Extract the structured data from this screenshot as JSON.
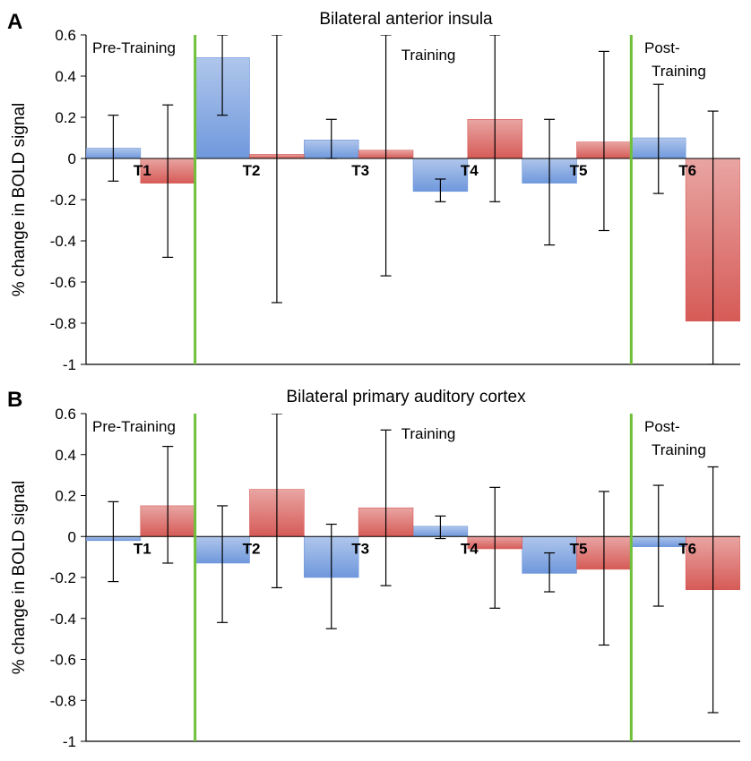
{
  "chart_data": [
    {
      "type": "bar",
      "panel_label": "A",
      "title": "Bilateral anterior insula",
      "xlabel": "",
      "ylabel": "% change in BOLD signal",
      "ylim": [
        -1,
        0.6
      ],
      "yticks": [
        0.6,
        0.4,
        0.2,
        0,
        -0.2,
        -0.4,
        -0.6,
        -0.8,
        -1
      ],
      "ytick_labels": [
        "0.6",
        "0.4",
        "0.2",
        "0",
        "-0.2",
        "-0.4",
        "-0.6",
        "-0.8",
        "-1"
      ],
      "grid": false,
      "categories": [
        "T1",
        "T2",
        "T3",
        "T4",
        "T5",
        "T6"
      ],
      "phases": [
        "Pre-Training",
        "Training",
        "Post-",
        "Training"
      ],
      "phase_boundaries_after": [
        "T1",
        "T5"
      ],
      "series": [
        {
          "name": "blue",
          "color": "#6f98dc",
          "values": [
            0.05,
            0.49,
            0.09,
            -0.16,
            -0.12,
            0.1
          ],
          "error_bars": [
            [
              -0.11,
              0.21
            ],
            [
              0.21,
              0.6
            ],
            [
              0.0,
              0.19
            ],
            [
              -0.21,
              -0.1
            ],
            [
              -0.42,
              0.19
            ],
            [
              -0.17,
              0.36
            ]
          ]
        },
        {
          "name": "red",
          "color": "#d65b57",
          "values": [
            -0.12,
            0.02,
            0.04,
            0.19,
            0.08,
            -0.79
          ],
          "error_bars": [
            [
              -0.48,
              0.26
            ],
            [
              -0.7,
              0.6
            ],
            [
              -0.57,
              0.6
            ],
            [
              -0.21,
              0.6
            ],
            [
              -0.35,
              0.52
            ],
            [
              -1.0,
              0.23
            ]
          ]
        }
      ]
    },
    {
      "type": "bar",
      "panel_label": "B",
      "title": "Bilateral primary auditory cortex",
      "xlabel": "",
      "ylabel": "% change in BOLD signal",
      "ylim": [
        -1,
        0.6
      ],
      "yticks": [
        0.6,
        0.4,
        0.2,
        0,
        -0.2,
        -0.4,
        -0.6,
        -0.8,
        -1
      ],
      "ytick_labels": [
        "0.6",
        "0.4",
        "0.2",
        "0",
        "-0.2",
        "-0.4",
        "-0.6",
        "-0.8",
        "-1"
      ],
      "grid": false,
      "categories": [
        "T1",
        "T2",
        "T3",
        "T4",
        "T5",
        "T6"
      ],
      "phases": [
        "Pre-Training",
        "Training",
        "Post-",
        "Training"
      ],
      "phase_boundaries_after": [
        "T1",
        "T5"
      ],
      "series": [
        {
          "name": "blue",
          "color": "#6f98dc",
          "values": [
            -0.02,
            -0.13,
            -0.2,
            0.05,
            -0.18,
            -0.05
          ],
          "error_bars": [
            [
              -0.22,
              0.17
            ],
            [
              -0.42,
              0.15
            ],
            [
              -0.45,
              0.06
            ],
            [
              -0.01,
              0.1
            ],
            [
              -0.27,
              -0.08
            ],
            [
              -0.34,
              0.25
            ]
          ]
        },
        {
          "name": "red",
          "color": "#d65b57",
          "values": [
            0.15,
            0.23,
            0.14,
            -0.06,
            -0.16,
            -0.26
          ],
          "error_bars": [
            [
              -0.13,
              0.44
            ],
            [
              -0.25,
              0.6
            ],
            [
              -0.24,
              0.52
            ],
            [
              -0.35,
              0.24
            ],
            [
              -0.53,
              0.22
            ],
            [
              -0.86,
              0.34
            ]
          ]
        }
      ]
    }
  ]
}
